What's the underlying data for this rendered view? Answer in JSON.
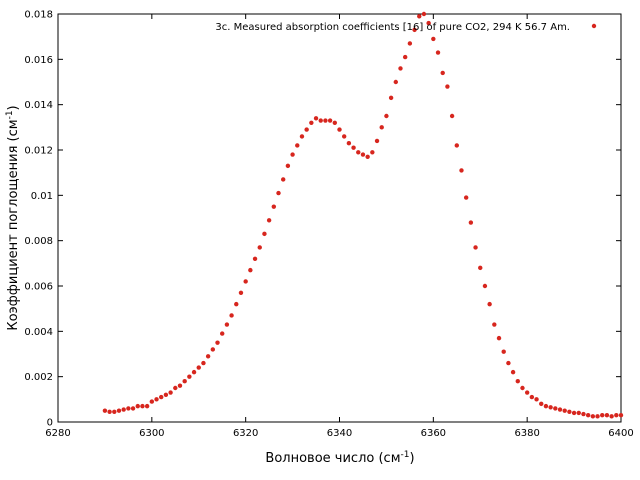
{
  "chart_data": {
    "type": "scatter",
    "xlabel": "Волновое число (см",
    "xlabel_sup": "-1",
    "xlabel_close": ")",
    "ylabel": "Коэффициент поглощения (см",
    "ylabel_sup": "-1",
    "ylabel_close": ")",
    "xlim": [
      6280,
      6400
    ],
    "ylim": [
      0,
      0.018
    ],
    "xticks": [
      6280,
      6300,
      6320,
      6340,
      6360,
      6380,
      6400
    ],
    "yticks": [
      0,
      0.002,
      0.004,
      0.006,
      0.008,
      0.01,
      0.012,
      0.014,
      0.016,
      0.018
    ],
    "grid": false,
    "legend_position": "top-right",
    "series": [
      {
        "name": "3c. Measured absorption coefficients [16] of pure CO2, 294 K 56.7 Am.",
        "color": "#d7261e",
        "x": [
          6290,
          6291,
          6292,
          6293,
          6294,
          6295,
          6296,
          6297,
          6298,
          6299,
          6300,
          6301,
          6302,
          6303,
          6304,
          6305,
          6306,
          6307,
          6308,
          6309,
          6310,
          6311,
          6312,
          6313,
          6314,
          6315,
          6316,
          6317,
          6318,
          6319,
          6320,
          6321,
          6322,
          6323,
          6324,
          6325,
          6326,
          6327,
          6328,
          6329,
          6330,
          6331,
          6332,
          6333,
          6334,
          6335,
          6336,
          6337,
          6338,
          6339,
          6340,
          6341,
          6342,
          6343,
          6344,
          6345,
          6346,
          6347,
          6348,
          6349,
          6350,
          6351,
          6352,
          6353,
          6354,
          6355,
          6356,
          6357,
          6358,
          6359,
          6360,
          6361,
          6362,
          6363,
          6364,
          6365,
          6366,
          6367,
          6368,
          6369,
          6370,
          6371,
          6372,
          6373,
          6374,
          6375,
          6376,
          6377,
          6378,
          6379,
          6380,
          6381,
          6382,
          6383,
          6384,
          6385,
          6386,
          6387,
          6388,
          6389,
          6390,
          6391,
          6392,
          6393,
          6394,
          6395,
          6396,
          6397,
          6398,
          6399,
          6400
        ],
        "y": [
          0.0005,
          0.00045,
          0.00045,
          0.0005,
          0.00055,
          0.0006,
          0.0006,
          0.0007,
          0.0007,
          0.0007,
          0.0009,
          0.001,
          0.0011,
          0.0012,
          0.0013,
          0.0015,
          0.0016,
          0.0018,
          0.002,
          0.0022,
          0.0024,
          0.0026,
          0.0029,
          0.0032,
          0.0035,
          0.0039,
          0.0043,
          0.0047,
          0.0052,
          0.0057,
          0.0062,
          0.0067,
          0.0072,
          0.0077,
          0.0083,
          0.0089,
          0.0095,
          0.0101,
          0.0107,
          0.0113,
          0.0118,
          0.0122,
          0.0126,
          0.0129,
          0.0132,
          0.0134,
          0.0133,
          0.0133,
          0.0133,
          0.0132,
          0.0129,
          0.0126,
          0.0123,
          0.0121,
          0.0119,
          0.0118,
          0.0117,
          0.0119,
          0.0124,
          0.013,
          0.0135,
          0.0143,
          0.015,
          0.0156,
          0.0161,
          0.0167,
          0.0173,
          0.0179,
          0.018,
          0.0176,
          0.0169,
          0.0163,
          0.0154,
          0.0148,
          0.0135,
          0.0122,
          0.0111,
          0.0099,
          0.0088,
          0.0077,
          0.0068,
          0.006,
          0.0052,
          0.0043,
          0.0037,
          0.0031,
          0.0026,
          0.0022,
          0.0018,
          0.0015,
          0.0013,
          0.0011,
          0.001,
          0.0008,
          0.0007,
          0.00065,
          0.0006,
          0.00055,
          0.0005,
          0.00045,
          0.0004,
          0.0004,
          0.00035,
          0.0003,
          0.00025,
          0.00025,
          0.0003,
          0.0003,
          0.00025,
          0.0003,
          0.0003
        ]
      }
    ]
  }
}
